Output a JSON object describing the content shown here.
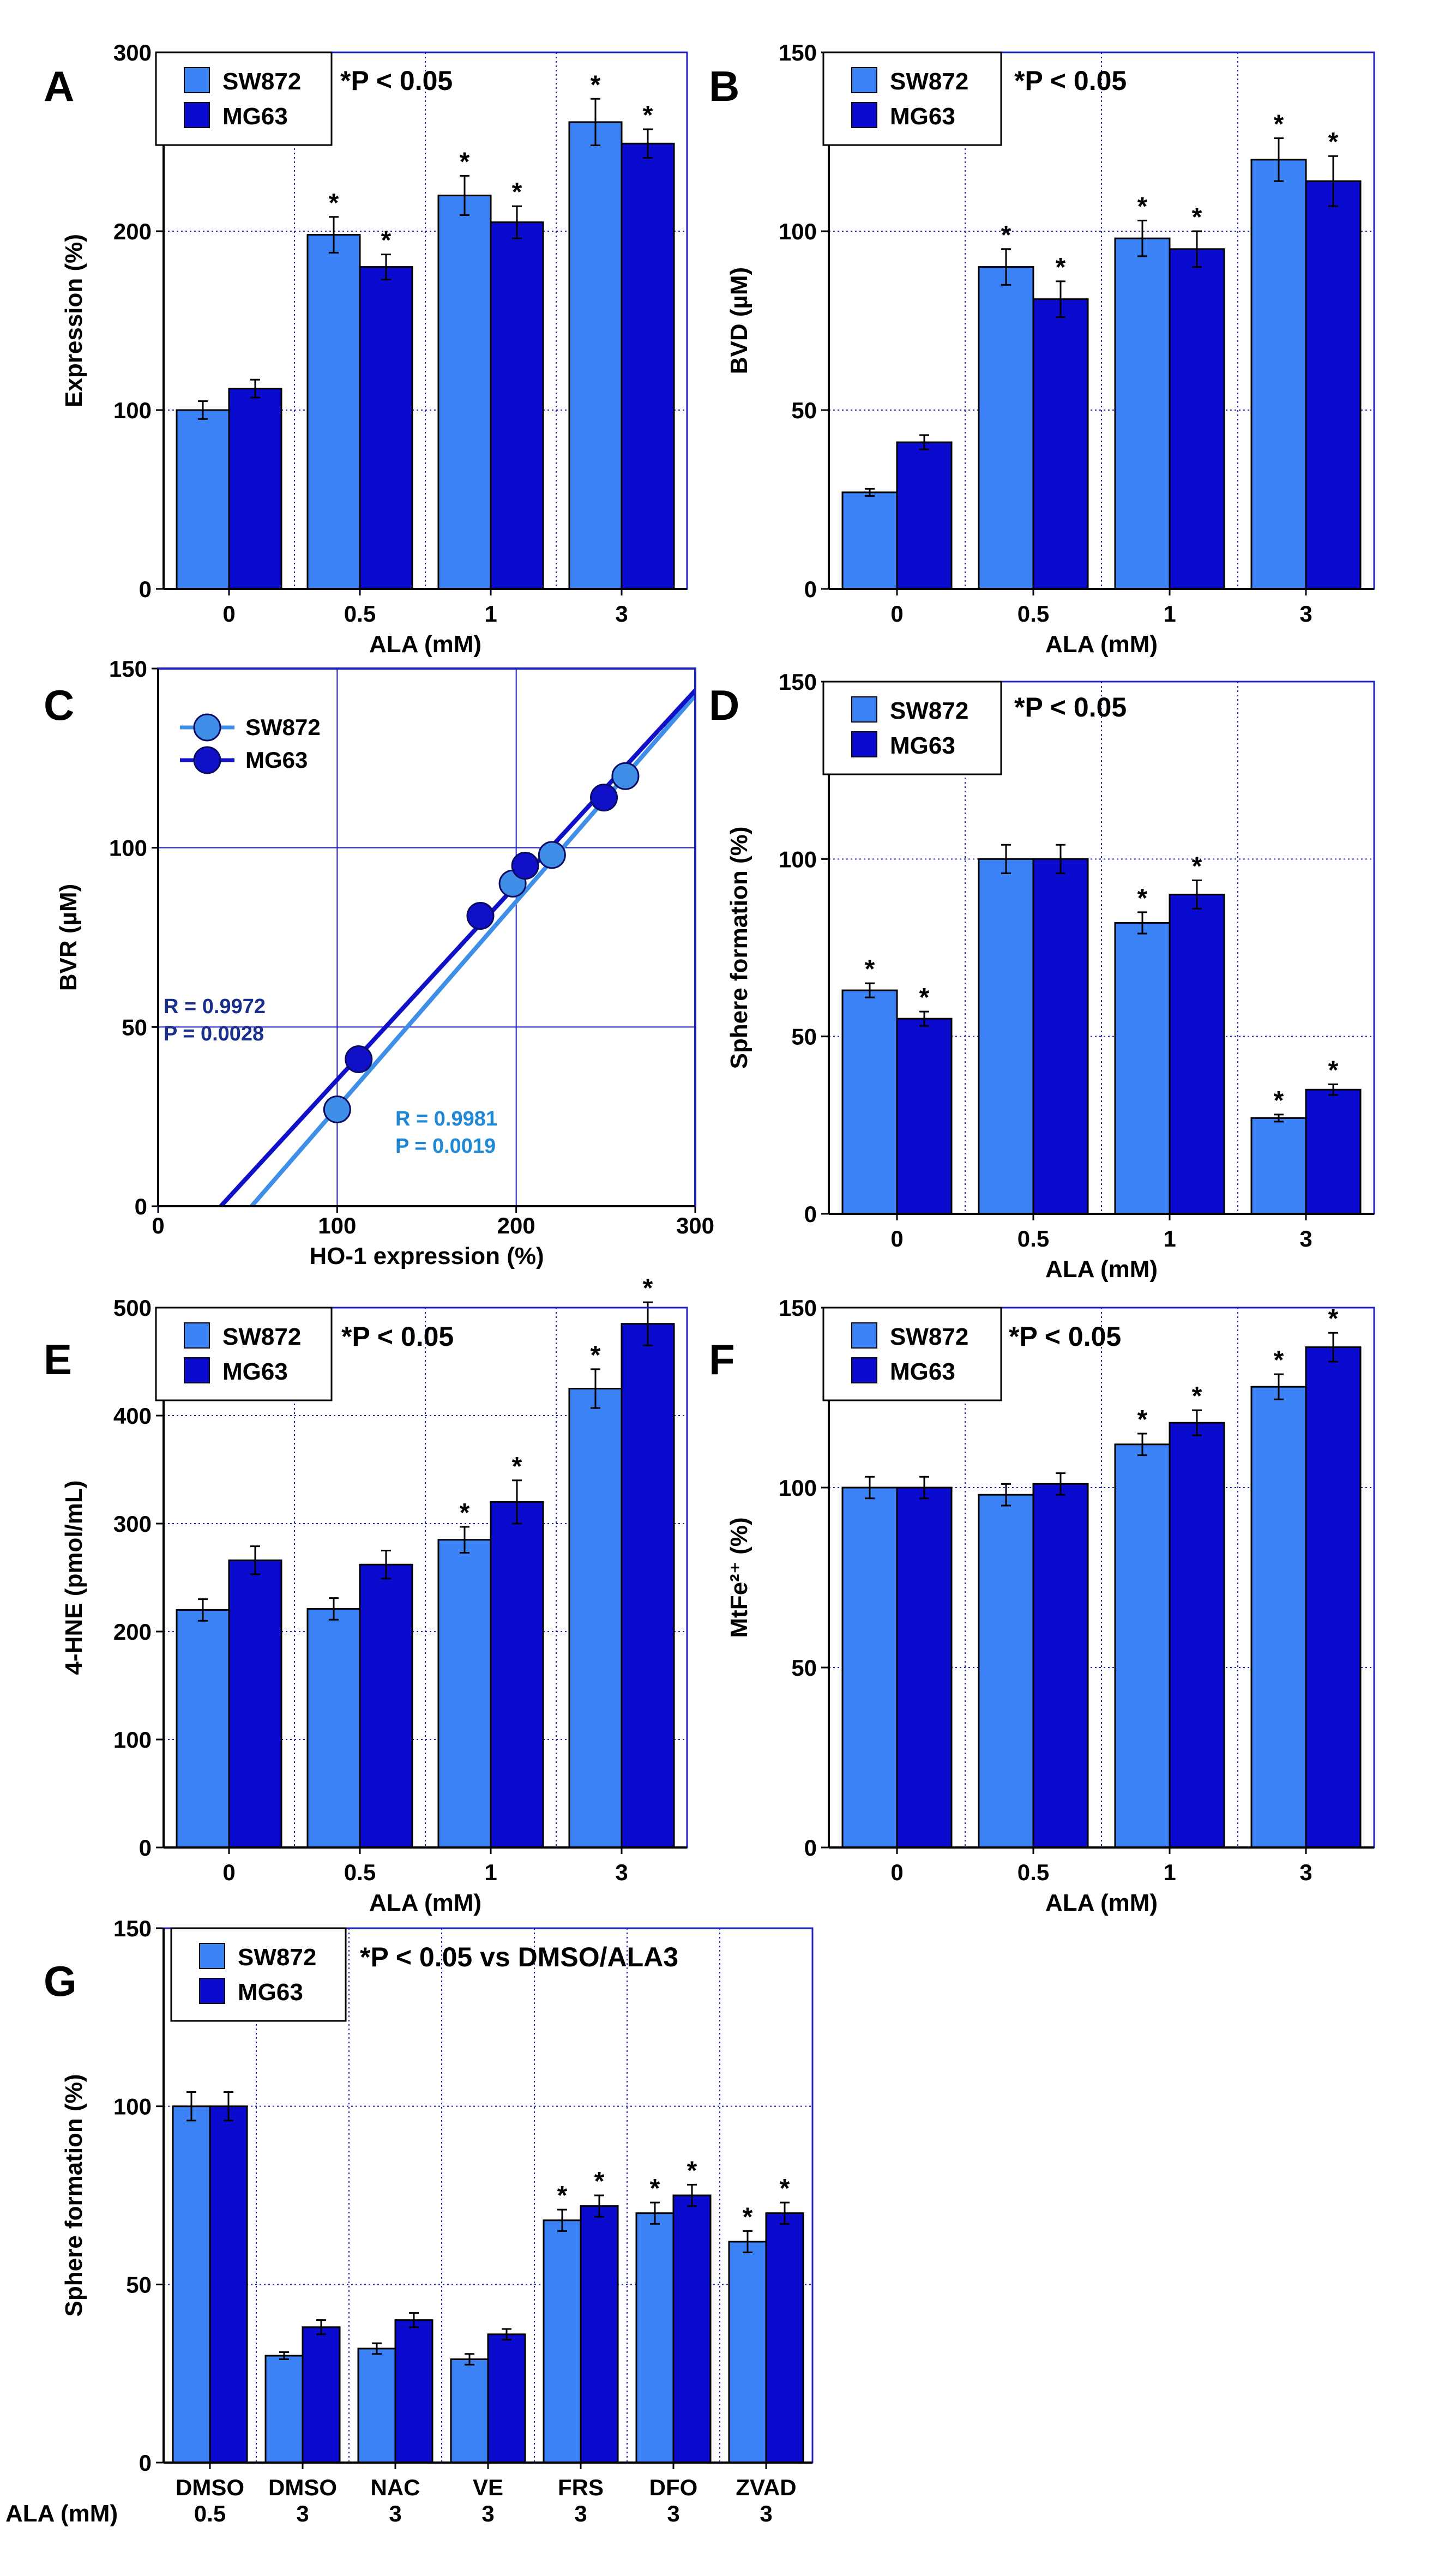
{
  "colors": {
    "sw872": "#3b82f6",
    "mg63": "#0b0bd0",
    "frame": "#2020c0",
    "grid": "#1f1fb8",
    "line_sw872": "#3f8fe8",
    "line_mg63": "#1010c8",
    "text_sw872": "#1e88d6",
    "text_mg63": "#1a2f8a"
  },
  "legend": {
    "sw872": "SW872",
    "mg63": "MG63"
  },
  "charts": [
    {
      "id": "A",
      "type": "bar",
      "letter": "A",
      "ylabel": "Expression (%)",
      "xlabel": "ALA (mM)",
      "ylim": [
        0,
        300
      ],
      "yticks": [
        "0",
        "100",
        "200",
        "300"
      ],
      "note": "*P < 0.05",
      "categories": [
        "0",
        "0.5",
        "1",
        "3"
      ],
      "series": [
        {
          "name": "SW872",
          "values": [
            100,
            198,
            220,
            261
          ],
          "errors": [
            5,
            10,
            11,
            13
          ],
          "sig": [
            false,
            true,
            true,
            true
          ]
        },
        {
          "name": "MG63",
          "values": [
            112,
            180,
            205,
            249
          ],
          "errors": [
            5,
            7,
            9,
            8
          ],
          "sig": [
            false,
            true,
            true,
            true
          ]
        }
      ]
    },
    {
      "id": "B",
      "type": "bar",
      "letter": "B",
      "ylabel": "BVD (µM)",
      "xlabel": "ALA (mM)",
      "ylim": [
        0,
        150
      ],
      "yticks": [
        "0",
        "50",
        "100",
        "150"
      ],
      "note": "*P < 0.05",
      "categories": [
        "0",
        "0.5",
        "1",
        "3"
      ],
      "series": [
        {
          "name": "SW872",
          "values": [
            27,
            90,
            98,
            120
          ],
          "errors": [
            1,
            5,
            5,
            6
          ],
          "sig": [
            false,
            true,
            true,
            true
          ]
        },
        {
          "name": "MG63",
          "values": [
            41,
            81,
            95,
            114
          ],
          "errors": [
            2,
            5,
            5,
            7
          ],
          "sig": [
            false,
            true,
            true,
            true
          ]
        }
      ]
    },
    {
      "id": "C",
      "type": "scatter",
      "letter": "C",
      "ylabel": "BVR (µM)",
      "xlabel": "HO-1 expression (%)",
      "xlim": [
        0,
        300
      ],
      "ylim": [
        0,
        150
      ],
      "xticks": [
        "0",
        "100",
        "200",
        "300"
      ],
      "yticks": [
        "0",
        "50",
        "100",
        "150"
      ],
      "series": [
        {
          "name": "SW872",
          "x": [
            100,
            198,
            220,
            261
          ],
          "y": [
            27,
            90,
            98,
            120
          ],
          "fit": {
            "slope": 0.575,
            "intercept": -30
          },
          "r_text": "R = 0.9981",
          "p_text": "P = 0.0019"
        },
        {
          "name": "MG63",
          "x": [
            112,
            180,
            205,
            249
          ],
          "y": [
            41,
            81,
            95,
            114
          ],
          "fit": {
            "slope": 0.543,
            "intercept": -19
          },
          "r_text": "R = 0.9972",
          "p_text": "P = 0.0028"
        }
      ]
    },
    {
      "id": "D",
      "type": "bar",
      "letter": "D",
      "ylabel": "Sphere formation (%)",
      "xlabel": "ALA (mM)",
      "ylim": [
        0,
        150
      ],
      "yticks": [
        "0",
        "50",
        "100",
        "150"
      ],
      "note": "*P < 0.05",
      "categories": [
        "0",
        "0.5",
        "1",
        "3"
      ],
      "series": [
        {
          "name": "SW872",
          "values": [
            63,
            100,
            82,
            27
          ],
          "errors": [
            2,
            4,
            3,
            1
          ],
          "sig": [
            true,
            false,
            true,
            true
          ]
        },
        {
          "name": "MG63",
          "values": [
            55,
            100,
            90,
            35
          ],
          "errors": [
            2,
            4,
            4,
            1.5
          ],
          "sig": [
            true,
            false,
            true,
            true
          ]
        }
      ]
    },
    {
      "id": "E",
      "type": "bar",
      "letter": "E",
      "ylabel": "4-HNE (pmol/mL)",
      "xlabel": "ALA (mM)",
      "ylim": [
        0,
        500
      ],
      "yticks": [
        "0",
        "100",
        "200",
        "300",
        "400",
        "500"
      ],
      "note": "*P < 0.05",
      "categories": [
        "0",
        "0.5",
        "1",
        "3"
      ],
      "series": [
        {
          "name": "SW872",
          "values": [
            220,
            221,
            285,
            425
          ],
          "errors": [
            10,
            10,
            12,
            18
          ],
          "sig": [
            false,
            false,
            true,
            true
          ]
        },
        {
          "name": "MG63",
          "values": [
            266,
            262,
            320,
            485
          ],
          "errors": [
            13,
            13,
            20,
            20
          ],
          "sig": [
            false,
            false,
            true,
            true
          ]
        }
      ]
    },
    {
      "id": "F",
      "type": "bar",
      "letter": "F",
      "ylabel": "MtFe²⁺ (%)",
      "xlabel": "ALA (mM)",
      "ylim": [
        0,
        150
      ],
      "yticks": [
        "0",
        "50",
        "100",
        "150"
      ],
      "note": "*P < 0.05",
      "categories": [
        "0",
        "0.5",
        "1",
        "3"
      ],
      "series": [
        {
          "name": "SW872",
          "values": [
            100,
            98,
            112,
            128
          ],
          "errors": [
            3,
            3,
            3,
            3.5
          ],
          "sig": [
            false,
            false,
            true,
            true
          ]
        },
        {
          "name": "MG63",
          "values": [
            100,
            101,
            118,
            139
          ],
          "errors": [
            3,
            3,
            3.5,
            4
          ],
          "sig": [
            false,
            false,
            true,
            true
          ]
        }
      ]
    },
    {
      "id": "G",
      "type": "bar",
      "letter": "G",
      "ylabel": "Sphere formation (%)",
      "xlabel_prefix": "ALA (mM)",
      "ylim": [
        0,
        150
      ],
      "yticks": [
        "0",
        "50",
        "100",
        "150"
      ],
      "note": "*P < 0.05 vs DMSO/ALA3",
      "categories": [
        "DMSO",
        "DMSO",
        "NAC",
        "VE",
        "FRS",
        "DFO",
        "ZVAD"
      ],
      "subcategories": [
        "0.5",
        "3",
        "3",
        "3",
        "3",
        "3",
        "3"
      ],
      "series": [
        {
          "name": "SW872",
          "values": [
            100,
            30,
            32,
            29,
            68,
            70,
            62
          ],
          "errors": [
            4,
            1,
            1.5,
            1.5,
            3,
            3,
            3
          ],
          "sig": [
            false,
            false,
            false,
            false,
            true,
            true,
            true
          ]
        },
        {
          "name": "MG63",
          "values": [
            100,
            38,
            40,
            36,
            72,
            75,
            70
          ],
          "errors": [
            4,
            2,
            2,
            1.5,
            3,
            3,
            3
          ],
          "sig": [
            false,
            false,
            false,
            false,
            true,
            true,
            true
          ]
        }
      ]
    }
  ]
}
